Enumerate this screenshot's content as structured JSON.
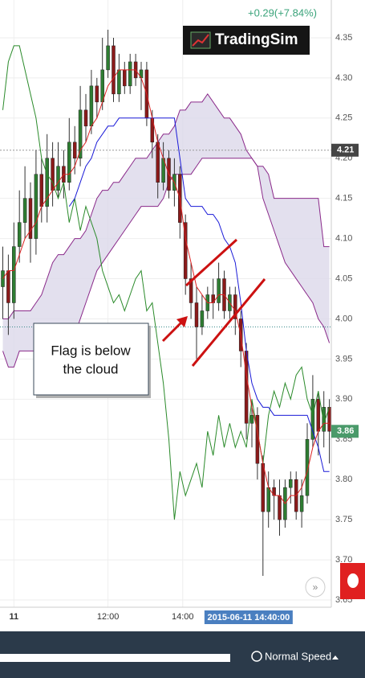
{
  "header": {
    "change": "+0.29(+7.84%)",
    "logo": "TradingSim"
  },
  "chart_data": {
    "type": "candlestick",
    "ylim": [
      3.641,
      4.397
    ],
    "yticks": [
      3.65,
      {
        "value": 3.7,
        "label": "3.70"
      },
      3.75,
      {
        "value": 3.8,
        "label": "3.80"
      },
      3.85,
      {
        "value": 3.9,
        "label": "3.90"
      },
      3.95,
      {
        "value": 4.0,
        "label": "4.00"
      },
      4.05,
      {
        "value": 4.1,
        "label": "4.10"
      },
      4.15,
      {
        "value": 4.2,
        "label": "4.20"
      },
      4.25,
      {
        "value": 4.3,
        "label": "4.30"
      },
      4.35
    ],
    "xticks": [
      {
        "value": 2,
        "label": "11"
      },
      {
        "value": 19,
        "label": "12:00"
      },
      {
        "value": 32.5,
        "label": "14:00"
      }
    ],
    "grid": true,
    "up_color": "#2e7d32",
    "down_color": "#8b1a1a",
    "candles": {
      "open": [
        4.04,
        4.06,
        4.02,
        4.09,
        4.12,
        4.15,
        4.1,
        4.18,
        4.14,
        4.2,
        4.16,
        4.19,
        4.17,
        4.22,
        4.2,
        4.26,
        4.24,
        4.29,
        4.27,
        4.31,
        4.34,
        4.28,
        4.31,
        4.29,
        4.32,
        4.3,
        4.31,
        4.25,
        4.22,
        4.17,
        4.2,
        4.16,
        4.18,
        4.12,
        4.05,
        4.02,
        3.99,
        4.01,
        4.03,
        4.02,
        4.05,
        4.01,
        4.03,
        4.0,
        3.96,
        3.87,
        3.88,
        3.82,
        3.76,
        3.79,
        3.78,
        3.75,
        3.79,
        3.8,
        3.76,
        3.78,
        3.85,
        3.9,
        3.86,
        3.89
      ],
      "high": [
        4.09,
        4.08,
        4.12,
        4.16,
        4.19,
        4.17,
        4.21,
        4.2,
        4.23,
        4.22,
        4.22,
        4.21,
        4.25,
        4.24,
        4.29,
        4.28,
        4.31,
        4.3,
        4.35,
        4.36,
        4.35,
        4.33,
        4.32,
        4.33,
        4.33,
        4.32,
        4.32,
        4.26,
        4.23,
        4.22,
        4.21,
        4.2,
        4.19,
        4.13,
        4.07,
        4.04,
        4.03,
        4.04,
        4.05,
        4.07,
        4.06,
        4.04,
        4.04,
        4.01,
        3.97,
        3.9,
        3.89,
        3.83,
        3.81,
        3.8,
        3.8,
        3.8,
        3.81,
        3.81,
        3.8,
        3.87,
        3.93,
        3.91,
        3.91,
        3.9
      ],
      "low": [
        4.0,
        3.98,
        4.0,
        4.07,
        4.1,
        4.07,
        4.08,
        4.12,
        4.12,
        4.14,
        4.15,
        4.15,
        4.16,
        4.18,
        4.19,
        4.22,
        4.23,
        4.25,
        4.26,
        4.3,
        4.27,
        4.27,
        4.28,
        4.28,
        4.29,
        4.26,
        4.24,
        4.2,
        4.15,
        4.16,
        4.15,
        4.14,
        4.1,
        4.03,
        4.0,
        3.95,
        3.98,
        4.0,
        4.0,
        4.01,
        4.0,
        4.0,
        3.98,
        3.94,
        3.85,
        3.84,
        3.8,
        3.68,
        3.74,
        3.75,
        3.73,
        3.74,
        3.77,
        3.75,
        3.74,
        3.77,
        3.84,
        3.83,
        3.84,
        3.82
      ],
      "close": [
        4.06,
        4.02,
        4.09,
        4.12,
        4.15,
        4.1,
        4.18,
        4.14,
        4.2,
        4.16,
        4.19,
        4.17,
        4.22,
        4.2,
        4.26,
        4.24,
        4.29,
        4.27,
        4.31,
        4.34,
        4.28,
        4.31,
        4.29,
        4.32,
        4.3,
        4.31,
        4.25,
        4.22,
        4.17,
        4.2,
        4.16,
        4.18,
        4.12,
        4.05,
        4.02,
        3.99,
        4.01,
        4.03,
        4.02,
        4.05,
        4.01,
        4.03,
        4.0,
        3.96,
        3.87,
        3.88,
        3.82,
        3.76,
        3.79,
        3.78,
        3.75,
        3.79,
        3.8,
        3.76,
        3.78,
        3.85,
        3.9,
        3.86,
        3.89,
        3.86
      ]
    },
    "cloud": {
      "fill": "#dcd8ea",
      "upper": {
        "color": "#8a2a8a",
        "values": [
          4.0,
          4.0,
          4.01,
          4.01,
          4.01,
          4.01,
          4.02,
          4.03,
          4.05,
          4.07,
          4.08,
          4.08,
          4.09,
          4.1,
          4.1,
          4.11,
          4.13,
          4.15,
          4.16,
          4.16,
          4.17,
          4.17,
          4.18,
          4.19,
          4.2,
          4.2,
          4.2,
          4.21,
          4.22,
          4.23,
          4.23,
          4.24,
          4.26,
          4.26,
          4.27,
          4.27,
          4.27,
          4.28,
          4.27,
          4.26,
          4.25,
          4.25,
          4.24,
          4.23,
          4.21,
          4.2,
          4.19,
          4.19,
          4.18,
          4.15,
          4.15,
          4.15,
          4.15,
          4.15,
          4.15,
          4.15,
          4.15,
          4.15,
          4.09,
          4.09
        ]
      },
      "lower": {
        "color": "#8a2a8a",
        "values": [
          3.96,
          3.94,
          3.94,
          3.96,
          3.96,
          3.96,
          3.96,
          3.96,
          3.96,
          3.96,
          3.96,
          3.96,
          3.97,
          3.98,
          4.0,
          4.02,
          4.04,
          4.06,
          4.07,
          4.08,
          4.09,
          4.1,
          4.11,
          4.12,
          4.13,
          4.14,
          4.14,
          4.14,
          4.14,
          4.15,
          4.17,
          4.18,
          4.18,
          4.18,
          4.18,
          4.19,
          4.2,
          4.2,
          4.2,
          4.2,
          4.2,
          4.2,
          4.2,
          4.2,
          4.2,
          4.2,
          4.19,
          4.15,
          4.13,
          4.11,
          4.09,
          4.07,
          4.06,
          4.05,
          4.04,
          4.03,
          4.02,
          4.0,
          3.99,
          3.97
        ]
      }
    },
    "series": [
      {
        "color": "#2a8a2a",
        "values": [
          4.26,
          4.32,
          4.34,
          4.34,
          4.31,
          4.28,
          4.25,
          4.2,
          4.18,
          4.17,
          4.15,
          4.17,
          4.12,
          4.15,
          4.11,
          4.14,
          4.12,
          4.1,
          4.06,
          4.04,
          4.02,
          4.03,
          4.01,
          4.03,
          4.05,
          4.06,
          4.01,
          4.02,
          3.97,
          3.92,
          3.85,
          3.75,
          3.81,
          3.78,
          3.8,
          3.82,
          3.79,
          3.86,
          3.83,
          3.88,
          3.84,
          3.87,
          3.84,
          3.86,
          3.84,
          3.9,
          3.86,
          3.82,
          3.88,
          3.91,
          3.89,
          3.92,
          3.9,
          3.93,
          3.94,
          3.9,
          3.88,
          3.91,
          3.87,
          3.89
        ]
      },
      {
        "color": "#1a1ad8",
        "values": [
          null,
          null,
          null,
          null,
          null,
          null,
          null,
          null,
          null,
          null,
          null,
          null,
          4.14,
          4.15,
          4.17,
          4.19,
          4.2,
          4.22,
          4.23,
          4.24,
          4.24,
          4.25,
          4.25,
          4.25,
          4.25,
          4.25,
          4.25,
          4.25,
          4.25,
          4.25,
          4.25,
          4.25,
          4.2,
          4.15,
          4.14,
          4.14,
          4.14,
          4.13,
          4.13,
          4.12,
          4.1,
          4.09,
          4.07,
          4.02,
          3.96,
          3.92,
          3.9,
          3.89,
          3.89,
          3.88,
          3.88,
          3.88,
          3.88,
          3.88,
          3.88,
          3.88,
          3.86,
          3.84,
          3.81,
          3.81
        ]
      },
      {
        "color": "#dd2222",
        "values": [
          4.05,
          4.06,
          4.06,
          4.08,
          4.1,
          4.11,
          4.12,
          4.14,
          4.15,
          4.16,
          4.17,
          4.18,
          4.18,
          4.19,
          4.21,
          4.22,
          4.24,
          4.25,
          4.27,
          4.29,
          4.3,
          4.31,
          4.31,
          4.31,
          4.31,
          4.3,
          4.28,
          4.25,
          4.22,
          4.2,
          4.18,
          4.17,
          4.15,
          4.1,
          4.07,
          4.04,
          4.03,
          4.02,
          4.02,
          4.03,
          4.03,
          4.02,
          4.01,
          3.98,
          3.93,
          3.89,
          3.86,
          3.82,
          3.79,
          3.78,
          3.78,
          3.77,
          3.78,
          3.78,
          3.79,
          3.81,
          3.84,
          3.86,
          3.87,
          3.87
        ]
      }
    ],
    "crosshair_y": 4.21,
    "crosshair_x": 44.4,
    "crosshair_x_label": "2015-06-11 14:40:00",
    "last_price": 3.86,
    "ref_line": 3.99
  },
  "annotation": {
    "lines": [
      "Flag is below",
      "the cloud"
    ]
  },
  "footer": {
    "speed": "Normal Speed"
  }
}
